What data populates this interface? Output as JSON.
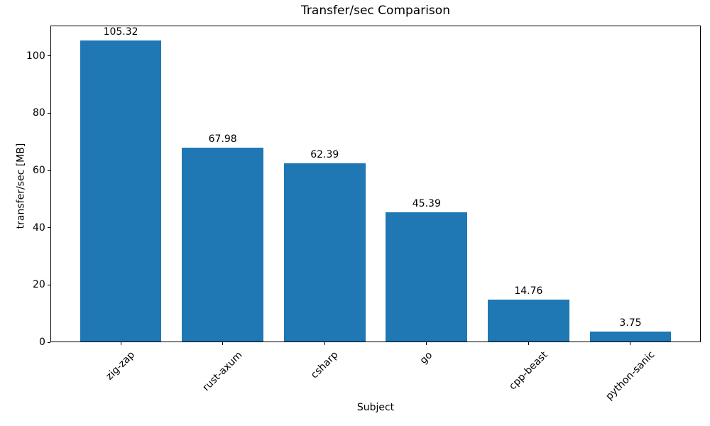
{
  "chart_data": {
    "type": "bar",
    "title": "Transfer/sec Comparison",
    "xlabel": "Subject",
    "ylabel": "transfer/sec [MB]",
    "categories": [
      "zig-zap",
      "rust-axum",
      "csharp",
      "go",
      "cpp-beast",
      "python-sanic"
    ],
    "values": [
      105.32,
      67.98,
      62.39,
      45.39,
      14.76,
      3.75
    ],
    "bar_value_labels": [
      "105.32",
      "67.98",
      "62.39",
      "45.39",
      "14.76",
      "3.75"
    ],
    "yticks": [
      0,
      20,
      40,
      60,
      80,
      100
    ],
    "ylim": [
      0,
      110.59
    ],
    "bar_color": "#1f77b4",
    "text_color": "#000000",
    "background_color": "#ffffff",
    "spine_color": "#000000",
    "grid": false,
    "legend_position": "none",
    "bar_width_fraction": 0.8,
    "x_tick_label_rotation_deg": 45
  }
}
